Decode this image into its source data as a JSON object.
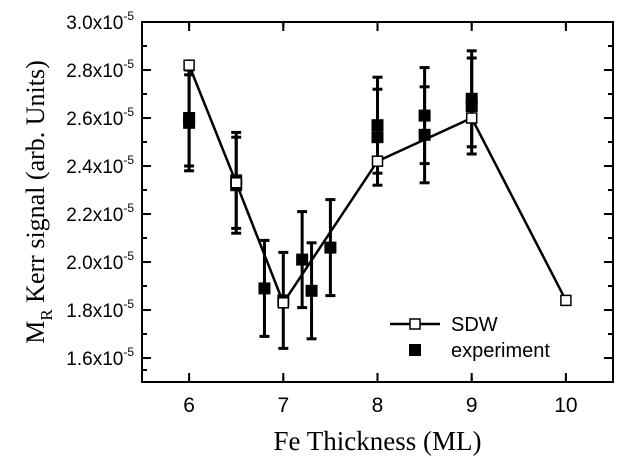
{
  "chart_data": {
    "type": "scatter",
    "xlabel": "Fe Thickness (ML)",
    "ylabel": "M",
    "ylabel_sub": "R",
    "ylabel_rest": " Kerr signal (arb. Units)",
    "xlim": [
      5.5,
      10.5
    ],
    "ylim": [
      1.5e-05,
      3e-05
    ],
    "x_ticks": [
      {
        "value": 6,
        "label": "6"
      },
      {
        "value": 7,
        "label": "7"
      },
      {
        "value": 8,
        "label": "8"
      },
      {
        "value": 9,
        "label": "9"
      },
      {
        "value": 10,
        "label": "10"
      }
    ],
    "y_ticks": [
      {
        "value": 1.6e-05,
        "mant": "1.6x10",
        "exp": "-5"
      },
      {
        "value": 1.8e-05,
        "mant": "1.8x10",
        "exp": "-5"
      },
      {
        "value": 2e-05,
        "mant": "2.0x10",
        "exp": "-5"
      },
      {
        "value": 2.2e-05,
        "mant": "2.2x10",
        "exp": "-5"
      },
      {
        "value": 2.4e-05,
        "mant": "2.4x10",
        "exp": "-5"
      },
      {
        "value": 2.6e-05,
        "mant": "2.6x10",
        "exp": "-5"
      },
      {
        "value": 2.8e-05,
        "mant": "2.8x10",
        "exp": "-5"
      },
      {
        "value": 3e-05,
        "mant": "3.0x10",
        "exp": "-5"
      }
    ],
    "grid": false,
    "legend_position": "bottom-right",
    "series": [
      {
        "name": "SDW",
        "style": "line-open-square",
        "color": "#000000",
        "points": [
          {
            "x": 6,
            "y": 2.82e-05
          },
          {
            "x": 6.5,
            "y": 2.33e-05
          },
          {
            "x": 7,
            "y": 1.83e-05
          },
          {
            "x": 8,
            "y": 2.42e-05
          },
          {
            "x": 9,
            "y": 2.6e-05
          },
          {
            "x": 10,
            "y": 1.84e-05
          }
        ]
      },
      {
        "name": "experiment",
        "style": "filled-square-errorbar",
        "color": "#000000",
        "points": [
          {
            "x": 6,
            "y": 2.58e-05,
            "err": 2e-06
          },
          {
            "x": 6,
            "y": 2.6e-05,
            "err": 2e-06
          },
          {
            "x": 6.5,
            "y": 2.32e-05,
            "err": 2e-06
          },
          {
            "x": 6.5,
            "y": 2.34e-05,
            "err": 2e-06
          },
          {
            "x": 6.8,
            "y": 1.89e-05,
            "err": 2e-06
          },
          {
            "x": 7,
            "y": 1.84e-05,
            "err": 2e-06
          },
          {
            "x": 7.2,
            "y": 2.01e-05,
            "err": 2e-06
          },
          {
            "x": 7.3,
            "y": 1.88e-05,
            "err": 2e-06
          },
          {
            "x": 7.5,
            "y": 2.06e-05,
            "err": 2e-06
          },
          {
            "x": 8,
            "y": 2.52e-05,
            "err": 2e-06
          },
          {
            "x": 8,
            "y": 2.57e-05,
            "err": 2e-06
          },
          {
            "x": 8.5,
            "y": 2.53e-05,
            "err": 2e-06
          },
          {
            "x": 8.5,
            "y": 2.61e-05,
            "err": 2e-06
          },
          {
            "x": 9,
            "y": 2.65e-05,
            "err": 2e-06
          },
          {
            "x": 9,
            "y": 2.68e-05,
            "err": 2e-06
          }
        ]
      }
    ]
  }
}
